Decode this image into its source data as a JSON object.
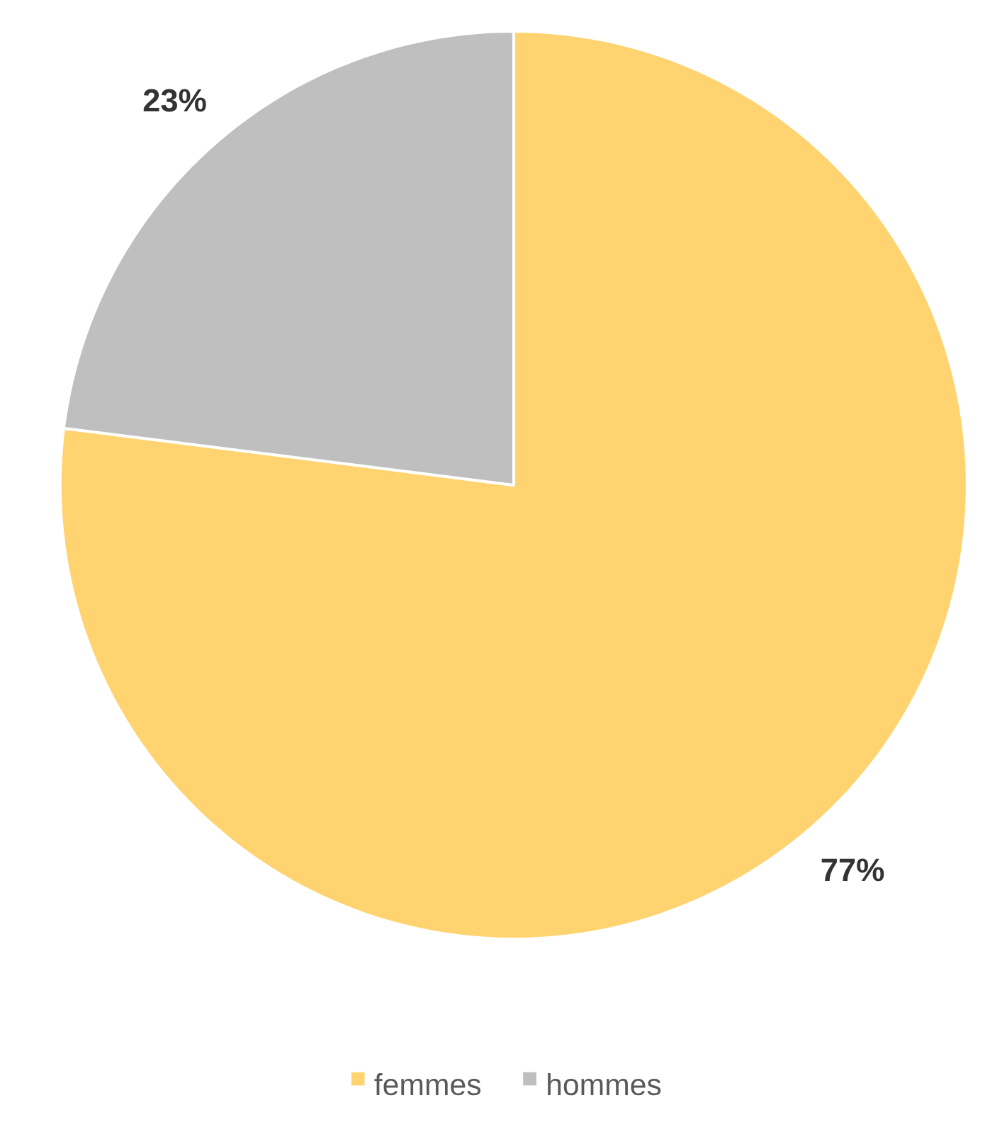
{
  "chart_data": {
    "type": "pie",
    "categories": [
      "femmes",
      "hommes"
    ],
    "values": [
      77,
      23
    ],
    "colors": [
      "#FFD470",
      "#BFBFBF"
    ],
    "value_labels": [
      "77%",
      "23%"
    ],
    "legend": "bottom"
  }
}
